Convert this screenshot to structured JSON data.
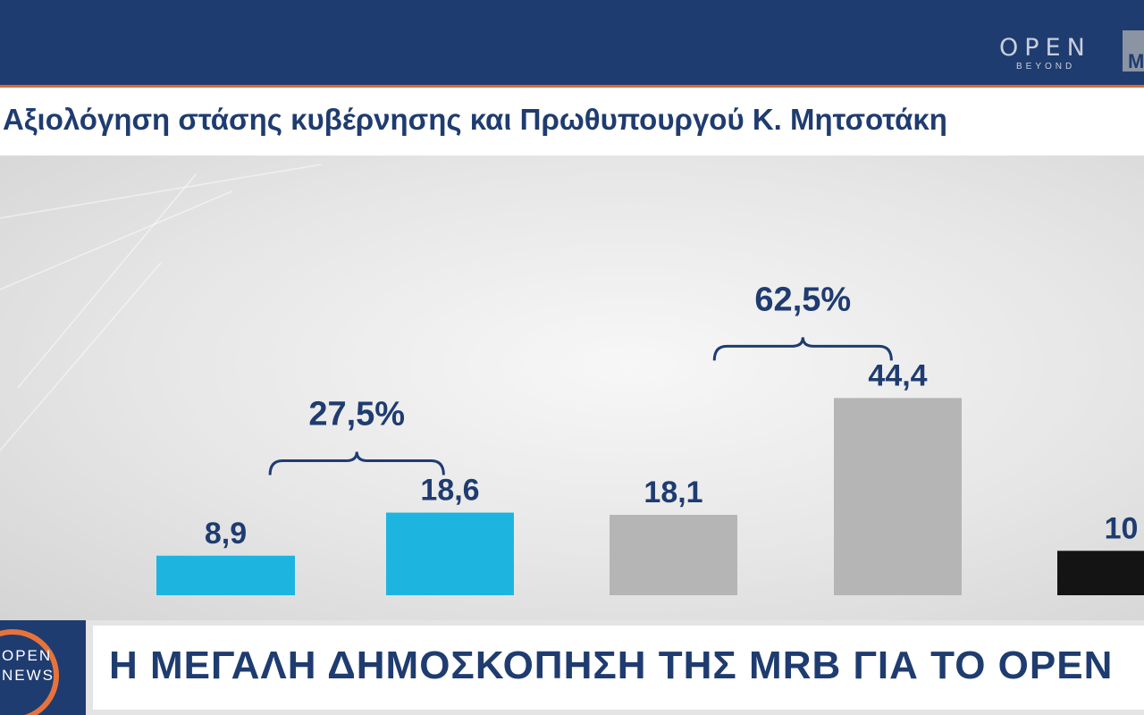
{
  "header": {
    "logo_open": "OPEN",
    "logo_beyond": "BEYOND",
    "logo_mrb": "M"
  },
  "title": "Αξιολόγηση στάσης κυβέρνησης και Πρωθυπουργού Κ. Μητσοτάκη",
  "chart_data": {
    "type": "bar",
    "values": [
      8.9,
      18.6,
      18.1,
      44.4,
      10
    ],
    "labels": [
      "8,9",
      "18,6",
      "18,1",
      "44,4",
      "10"
    ],
    "colors": [
      "#1db5e0",
      "#1db5e0",
      "#b5b5b5",
      "#b5b5b5",
      "#141414"
    ],
    "groups": [
      {
        "label": "27,5%",
        "from": 0,
        "to": 1
      },
      {
        "label": "62,5%",
        "from": 2,
        "to": 3
      }
    ],
    "ylim": [
      0,
      50
    ]
  },
  "bottom": {
    "logo_open": "OPEN",
    "logo_news": "NEWS",
    "banner": "Η ΜΕΓΑΛΗ ΔΗΜΟΣΚΟΠΗΣΗ ΤΗΣ MRB ΓΙΑ ΤΟ OPEN"
  }
}
